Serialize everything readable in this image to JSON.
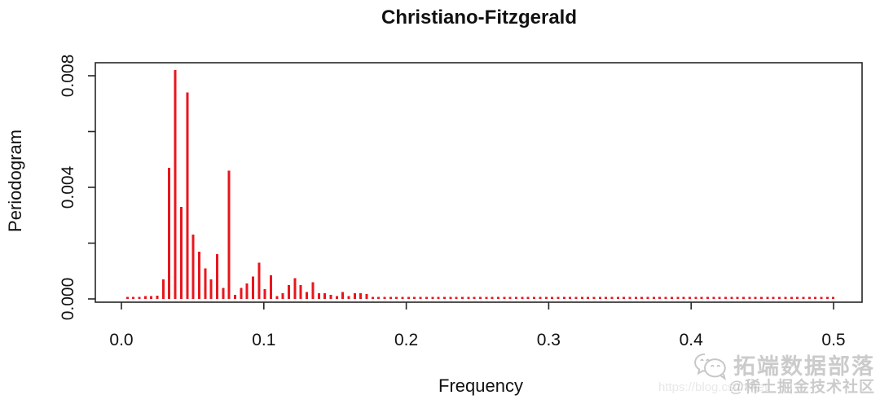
{
  "title": "Christiano-Fitzgerald",
  "axes": {
    "x_label": "Frequency",
    "y_label": "Periodogram",
    "x_ticks": [
      {
        "value": 0.0,
        "label": "0.0"
      },
      {
        "value": 0.1,
        "label": "0.1"
      },
      {
        "value": 0.2,
        "label": "0.2"
      },
      {
        "value": 0.3,
        "label": "0.3"
      },
      {
        "value": 0.4,
        "label": "0.4"
      },
      {
        "value": 0.5,
        "label": "0.5"
      }
    ],
    "y_ticks": [
      {
        "value": 0.0,
        "label": "0.000"
      },
      {
        "value": 0.002,
        "label": ""
      },
      {
        "value": 0.004,
        "label": "0.004"
      },
      {
        "value": 0.006,
        "label": ""
      },
      {
        "value": 0.008,
        "label": "0.008"
      }
    ]
  },
  "chart_data": {
    "type": "bar",
    "subtype": "needle-periodogram (R plot type='h')",
    "title": "Christiano-Fitzgerald",
    "xlabel": "Frequency",
    "ylabel": "Periodogram",
    "xlim": [
      0,
      0.5
    ],
    "ylim": [
      0,
      0.008
    ],
    "grid": false,
    "legend": null,
    "x_start": 0.0042,
    "x_step": 0.0042,
    "n_points": 119,
    "values": [
      8e-05,
      8e-05,
      8e-05,
      0.0001,
      0.0001,
      0.00012,
      0.0007,
      0.0047,
      0.0082,
      0.0033,
      0.0074,
      0.0023,
      0.0017,
      0.0011,
      0.0007,
      0.0016,
      0.0004,
      0.0046,
      0.00015,
      0.0004,
      0.00055,
      0.0008,
      0.0013,
      0.00035,
      0.00085,
      0.0001,
      0.0002,
      0.0005,
      0.00075,
      0.0005,
      0.00025,
      0.0006,
      0.0002,
      0.0002,
      0.00015,
      0.0001,
      0.00025,
      0.0001,
      0.0002,
      0.0002,
      0.00018,
      8e-05,
      8e-05,
      8e-05,
      8e-05,
      8e-05,
      8e-05,
      8e-05,
      8e-05,
      8e-05,
      8e-05,
      8e-05,
      8e-05,
      8e-05,
      8e-05,
      8e-05,
      8e-05,
      8e-05,
      8e-05,
      8e-05,
      8e-05,
      8e-05,
      8e-05,
      8e-05,
      8e-05,
      8e-05,
      8e-05,
      8e-05,
      8e-05,
      8e-05,
      8e-05,
      8e-05,
      8e-05,
      8e-05,
      8e-05,
      8e-05,
      8e-05,
      8e-05,
      8e-05,
      8e-05,
      8e-05,
      8e-05,
      8e-05,
      8e-05,
      8e-05,
      8e-05,
      8e-05,
      8e-05,
      8e-05,
      8e-05,
      8e-05,
      8e-05,
      8e-05,
      8e-05,
      8e-05,
      8e-05,
      8e-05,
      8e-05,
      8e-05,
      8e-05,
      8e-05,
      8e-05,
      8e-05,
      8e-05,
      8e-05,
      8e-05,
      8e-05,
      8e-05,
      8e-05,
      8e-05,
      8e-05,
      8e-05,
      8e-05,
      8e-05,
      8e-05,
      8e-05,
      8e-05,
      8e-05,
      8e-05
    ]
  },
  "colors": {
    "series": "#e8161d",
    "axis": "#262626",
    "background": "#ffffff",
    "title": "#000000",
    "watermark": "#c9c9c9"
  },
  "watermark": {
    "icon": "wechat-icon",
    "brand_text": "拓端数据部落",
    "handle_text": "@稀土掘金技术社区",
    "url_text": "https://blog.csdn.net"
  }
}
